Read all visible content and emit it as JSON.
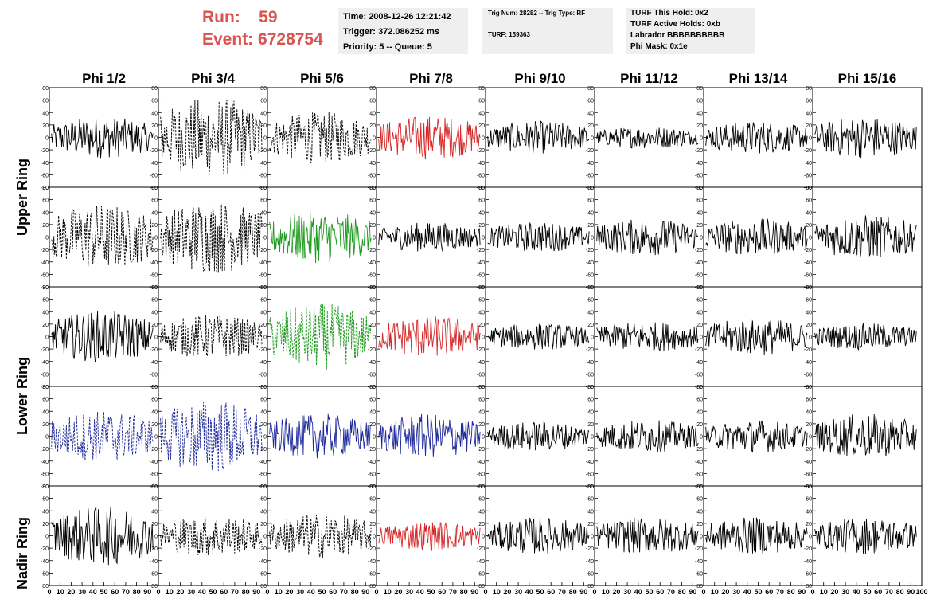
{
  "run": {
    "run_label": "Run:",
    "run_value": "59",
    "event_label": "Event:",
    "event_value": "6728754"
  },
  "info_boxes": {
    "box1": [
      "Time: 2008-12-26 12:21:42",
      "Trigger: 372.086252 ms",
      "Priority: 5 -- Queue: 5"
    ],
    "box2": [
      "Trig Num: 28282 -- Trig Type: RF",
      "TURF: 159363"
    ],
    "box3": [
      "TURF This Hold: 0x2",
      "TURF Active Holds: 0xb",
      "Labrador BBBBBBBBBB",
      "Phi Mask: 0x1e"
    ]
  },
  "ring_labels": [
    "Upper Ring",
    "Lower Ring",
    "Nadir Ring"
  ],
  "colors": {
    "black": "#000000",
    "red": "#d62728",
    "green": "#1f9a1f",
    "blue": "#1f2a9a",
    "text_red": "#d9534f",
    "box_bg": "#efefef"
  },
  "chart_data": {
    "type": "line",
    "columns": [
      "Phi 1/2",
      "Phi 3/4",
      "Phi 5/6",
      "Phi 7/8",
      "Phi 9/10",
      "Phi 11/12",
      "Phi 13/14",
      "Phi 15/16"
    ],
    "row_count": 5,
    "rings": [
      "Upper Ring",
      "Upper Ring",
      "Lower Ring",
      "Lower Ring",
      "Nadir Ring"
    ],
    "ylim": [
      -80,
      80
    ],
    "yticks": [
      "80",
      "60",
      "40",
      "20",
      "0",
      "-20",
      "-40",
      "-60",
      "-80"
    ],
    "xlim": [
      0,
      100
    ],
    "xticks": [
      "0",
      "10",
      "20",
      "30",
      "40",
      "50",
      "60",
      "70",
      "80",
      "90",
      "100"
    ],
    "panels": [
      [
        {
          "color": "black",
          "style": "solid",
          "amp": 28
        },
        {
          "color": "black",
          "style": "dashed",
          "amp": 55
        },
        {
          "color": "black",
          "style": "dashed",
          "amp": 35
        },
        {
          "color": "red",
          "style": "solid",
          "amp": 30
        },
        {
          "color": "black",
          "style": "solid",
          "amp": 22
        },
        {
          "color": "black",
          "style": "solid",
          "amp": 15
        },
        {
          "color": "black",
          "style": "solid",
          "amp": 22
        },
        {
          "color": "black",
          "style": "solid",
          "amp": 28
        }
      ],
      [
        {
          "color": "black",
          "style": "dashed",
          "amp": 45
        },
        {
          "color": "black",
          "style": "dashed",
          "amp": 50
        },
        {
          "color": "green",
          "style": "solid",
          "amp": 35
        },
        {
          "color": "black",
          "style": "solid",
          "amp": 20
        },
        {
          "color": "black",
          "style": "solid",
          "amp": 20
        },
        {
          "color": "black",
          "style": "solid",
          "amp": 25
        },
        {
          "color": "black",
          "style": "solid",
          "amp": 25
        },
        {
          "color": "black",
          "style": "solid",
          "amp": 30
        }
      ],
      [
        {
          "color": "black",
          "style": "solid",
          "amp": 35
        },
        {
          "color": "black",
          "style": "dashed",
          "amp": 30
        },
        {
          "color": "green",
          "style": "dashed",
          "amp": 45
        },
        {
          "color": "red",
          "style": "solid",
          "amp": 28
        },
        {
          "color": "black",
          "style": "solid",
          "amp": 18
        },
        {
          "color": "black",
          "style": "solid",
          "amp": 20
        },
        {
          "color": "black",
          "style": "solid",
          "amp": 25
        },
        {
          "color": "black",
          "style": "solid",
          "amp": 18
        }
      ],
      [
        {
          "color": "blue",
          "style": "dashed",
          "amp": 35
        },
        {
          "color": "blue",
          "style": "dashed",
          "amp": 50
        },
        {
          "color": "blue",
          "style": "solid",
          "amp": 30
        },
        {
          "color": "blue",
          "style": "solid",
          "amp": 30
        },
        {
          "color": "black",
          "style": "solid",
          "amp": 20
        },
        {
          "color": "black",
          "style": "solid",
          "amp": 22
        },
        {
          "color": "black",
          "style": "solid",
          "amp": 22
        },
        {
          "color": "black",
          "style": "solid",
          "amp": 30
        }
      ],
      [
        {
          "color": "black",
          "style": "solid",
          "amp": 40
        },
        {
          "color": "black",
          "style": "dashed",
          "amp": 28
        },
        {
          "color": "black",
          "style": "dashed",
          "amp": 30
        },
        {
          "color": "red",
          "style": "solid",
          "amp": 20
        },
        {
          "color": "black",
          "style": "solid",
          "amp": 25
        },
        {
          "color": "black",
          "style": "solid",
          "amp": 25
        },
        {
          "color": "black",
          "style": "solid",
          "amp": 25
        },
        {
          "color": "black",
          "style": "solid",
          "amp": 25
        }
      ]
    ]
  }
}
